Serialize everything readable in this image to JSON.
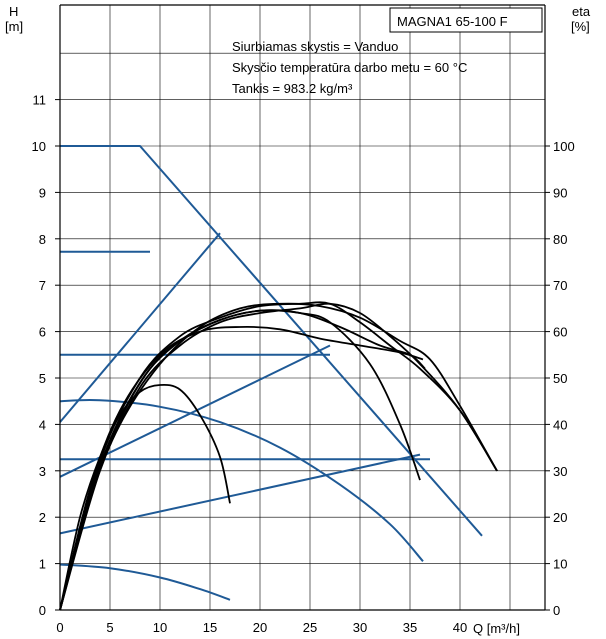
{
  "chart_data": {
    "type": "line",
    "title": "MAGNA1 65-100 F",
    "info": [
      "Siurbiamas skystis = Vanduo",
      "Skysčio temperatūra darbo metu = 60 °C",
      "Tankis = 983.2 kg/m³"
    ],
    "ylabel": "H",
    "yunit": "[m]",
    "y2label": "eta",
    "y2unit": "[%]",
    "xlabel": "Q [m³/h]",
    "xlim": [
      0,
      48
    ],
    "ylim": [
      0,
      13
    ],
    "y2lim": [
      0,
      130
    ],
    "xticks": [
      "0",
      "5",
      "10",
      "15",
      "20",
      "25",
      "30",
      "35",
      "40"
    ],
    "yticks": [
      "0",
      "1",
      "2",
      "3",
      "4",
      "5",
      "6",
      "7",
      "8",
      "9",
      "10",
      "11"
    ],
    "y2ticks": [
      "0",
      "10",
      "20",
      "30",
      "40",
      "50",
      "60",
      "70",
      "80",
      "90",
      "100"
    ],
    "colors": {
      "pump_curves": "#1f5a96",
      "efficiency_curves": "#000000",
      "axes": "#000000",
      "grid": "#000000"
    },
    "series": [
      {
        "kind": "head",
        "points": [
          [
            0,
            10
          ],
          [
            8,
            10
          ],
          [
            42.2,
            1.6
          ]
        ]
      },
      {
        "kind": "head",
        "points": [
          [
            0,
            7.72
          ],
          [
            9,
            7.72
          ]
        ]
      },
      {
        "kind": "head",
        "points": [
          [
            0,
            5.5
          ],
          [
            27,
            5.5
          ]
        ]
      },
      {
        "kind": "head",
        "points": [
          [
            0,
            3.25
          ],
          [
            37,
            3.25
          ]
        ]
      },
      {
        "kind": "head",
        "points": [
          [
            0,
            4.5
          ],
          [
            4,
            4.52
          ],
          [
            10,
            4.38
          ],
          [
            16,
            4.05
          ],
          [
            22,
            3.5
          ],
          [
            28,
            2.7
          ],
          [
            33,
            1.85
          ],
          [
            36.3,
            1.05
          ]
        ]
      },
      {
        "kind": "head",
        "points": [
          [
            0,
            0.98
          ],
          [
            5,
            0.9
          ],
          [
            10,
            0.7
          ],
          [
            14,
            0.45
          ],
          [
            17,
            0.22
          ]
        ]
      },
      {
        "kind": "head",
        "points": [
          [
            0,
            4.05
          ],
          [
            16,
            8.12
          ]
        ]
      },
      {
        "kind": "head",
        "points": [
          [
            0,
            2.87
          ],
          [
            27,
            5.7
          ]
        ]
      },
      {
        "kind": "head",
        "points": [
          [
            0,
            1.65
          ],
          [
            36,
            3.35
          ]
        ]
      },
      {
        "kind": "eta",
        "points": [
          [
            0,
            0
          ],
          [
            2,
            20
          ],
          [
            4,
            33
          ],
          [
            6,
            42
          ],
          [
            8,
            47
          ],
          [
            10,
            48.5
          ],
          [
            12,
            47.5
          ],
          [
            14,
            42
          ],
          [
            16,
            33
          ],
          [
            17,
            23
          ]
        ]
      },
      {
        "kind": "eta",
        "points": [
          [
            0,
            0
          ],
          [
            3,
            25
          ],
          [
            6,
            41
          ],
          [
            9,
            52
          ],
          [
            12,
            58
          ],
          [
            16,
            62.5
          ],
          [
            20,
            64.5
          ],
          [
            24,
            64
          ],
          [
            27,
            62
          ],
          [
            31,
            53
          ],
          [
            34,
            40
          ],
          [
            36,
            28
          ]
        ]
      },
      {
        "kind": "eta",
        "points": [
          [
            0,
            0
          ],
          [
            3,
            26
          ],
          [
            6,
            43
          ],
          [
            10,
            55
          ],
          [
            14,
            60
          ],
          [
            18,
            61
          ],
          [
            22,
            60.5
          ],
          [
            26,
            58.5
          ],
          [
            30,
            57
          ],
          [
            34,
            55.5
          ],
          [
            36.3,
            54
          ]
        ]
      },
      {
        "kind": "eta",
        "points": [
          [
            0,
            0
          ],
          [
            3,
            24
          ],
          [
            6,
            40
          ],
          [
            10,
            53
          ],
          [
            14,
            61
          ],
          [
            18,
            65
          ],
          [
            22,
            66
          ],
          [
            26,
            65.5
          ],
          [
            30,
            63
          ],
          [
            34,
            58
          ],
          [
            37,
            54
          ],
          [
            40,
            44
          ],
          [
            43.7,
            30
          ]
        ]
      },
      {
        "kind": "eta",
        "points": [
          [
            0,
            0
          ],
          [
            4,
            30
          ],
          [
            8,
            48
          ],
          [
            12,
            57
          ],
          [
            16,
            62
          ],
          [
            20,
            64
          ],
          [
            24,
            65
          ],
          [
            27,
            66
          ],
          [
            30,
            64
          ],
          [
            33,
            59
          ],
          [
            36,
            53
          ],
          [
            40,
            43
          ],
          [
            43.7,
            30
          ]
        ]
      },
      {
        "kind": "eta",
        "points": [
          [
            0,
            0
          ],
          [
            4,
            32
          ],
          [
            8,
            50
          ],
          [
            12,
            59
          ],
          [
            16,
            63
          ],
          [
            20,
            65.5
          ],
          [
            24,
            66
          ],
          [
            27,
            66
          ],
          [
            30,
            62
          ],
          [
            33,
            57
          ],
          [
            36,
            52
          ],
          [
            40,
            43
          ],
          [
            43.7,
            30
          ]
        ]
      },
      {
        "kind": "eta",
        "points": [
          [
            0,
            0
          ],
          [
            4,
            31
          ],
          [
            8,
            49
          ],
          [
            12,
            58
          ],
          [
            16,
            62.5
          ],
          [
            20,
            64.5
          ],
          [
            24,
            64
          ],
          [
            28,
            61
          ],
          [
            32,
            57
          ],
          [
            35,
            55
          ],
          [
            36.5,
            52
          ]
        ]
      }
    ]
  }
}
